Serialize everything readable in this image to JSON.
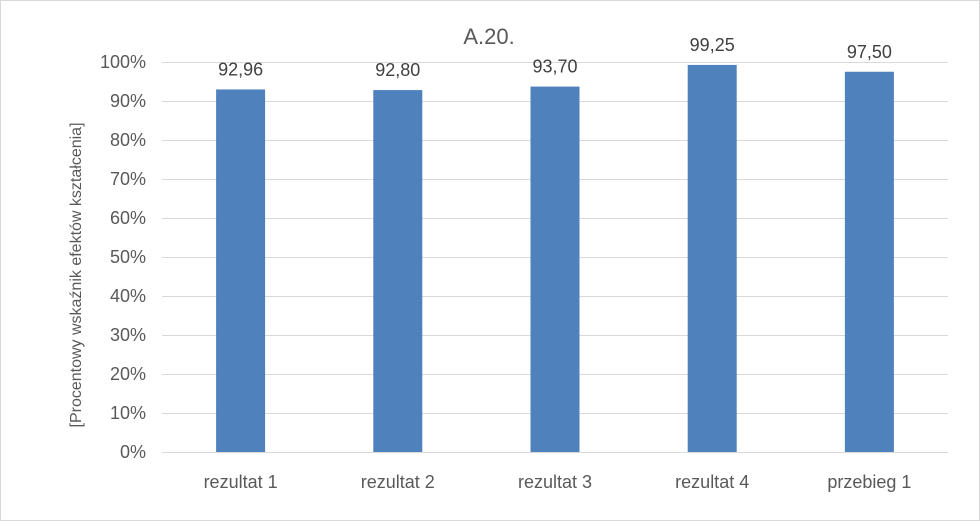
{
  "chart_data": {
    "type": "bar",
    "title": "A.20.",
    "ylabel": "[Procentowy wskaźnik efektów kształcenia]",
    "xlabel": "",
    "categories": [
      "rezultat 1",
      "rezultat 2",
      "rezultat 3",
      "rezultat 4",
      "przebieg 1"
    ],
    "values": [
      92.96,
      92.8,
      93.7,
      99.25,
      97.5
    ],
    "data_labels": [
      "92,96",
      "92,80",
      "93,70",
      "99,25",
      "97,50"
    ],
    "ylim": [
      0,
      100
    ],
    "ytick_values": [
      0,
      10,
      20,
      30,
      40,
      50,
      60,
      70,
      80,
      90,
      100
    ],
    "ytick_labels": [
      "0%",
      "10%",
      "20%",
      "30%",
      "40%",
      "50%",
      "60%",
      "70%",
      "80%",
      "90%",
      "100%"
    ],
    "grid": true,
    "legend": "none",
    "bar_color": "#4f81bd",
    "grid_color": "#d9d9d9"
  }
}
